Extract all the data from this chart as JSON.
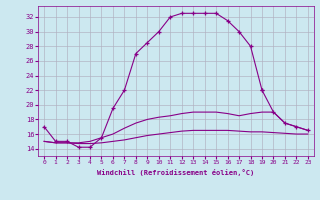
{
  "xlabel": "Windchill (Refroidissement éolien,°C)",
  "background_color": "#cce8f0",
  "grid_color": "#b0b0c0",
  "line_color": "#880088",
  "xlim": [
    -0.5,
    23.5
  ],
  "ylim": [
    13.0,
    33.5
  ],
  "xticks": [
    0,
    1,
    2,
    3,
    4,
    5,
    6,
    7,
    8,
    9,
    10,
    11,
    12,
    13,
    14,
    15,
    16,
    17,
    18,
    19,
    20,
    21,
    22,
    23
  ],
  "yticks": [
    14,
    16,
    18,
    20,
    22,
    24,
    26,
    28,
    30,
    32
  ],
  "curves": [
    {
      "x": [
        0,
        1,
        2,
        3,
        4,
        5,
        6,
        7,
        8,
        9,
        10,
        11,
        12,
        13,
        14,
        15,
        16,
        17,
        18,
        19
      ],
      "y": [
        17.0,
        15.0,
        15.0,
        14.2,
        14.2,
        15.5,
        19.5,
        22.0,
        27.0,
        28.5,
        30.0,
        32.0,
        32.5,
        32.5,
        32.5,
        32.5,
        31.5,
        30.0,
        28.0,
        22.0
      ],
      "marker": true
    },
    {
      "x": [
        19,
        20,
        21,
        22,
        23
      ],
      "y": [
        22.0,
        19.0,
        17.5,
        17.0,
        16.5
      ],
      "marker": true
    },
    {
      "x": [
        0,
        1,
        2,
        3,
        4,
        5,
        6,
        7,
        8,
        9,
        10,
        11,
        12,
        13,
        14,
        15,
        16,
        17,
        18,
        19,
        20,
        21,
        22,
        23
      ],
      "y": [
        15.0,
        14.8,
        14.8,
        14.8,
        15.0,
        15.5,
        16.0,
        16.8,
        17.5,
        18.0,
        18.3,
        18.5,
        18.8,
        19.0,
        19.0,
        19.0,
        18.8,
        18.5,
        18.8,
        19.0,
        19.0,
        17.5,
        17.0,
        16.5
      ],
      "marker": false
    },
    {
      "x": [
        0,
        1,
        2,
        3,
        4,
        5,
        6,
        7,
        8,
        9,
        10,
        11,
        12,
        13,
        14,
        15,
        16,
        17,
        18,
        19,
        20,
        21,
        22,
        23
      ],
      "y": [
        15.0,
        14.8,
        14.8,
        14.7,
        14.7,
        14.8,
        15.0,
        15.2,
        15.5,
        15.8,
        16.0,
        16.2,
        16.4,
        16.5,
        16.5,
        16.5,
        16.5,
        16.4,
        16.3,
        16.3,
        16.2,
        16.1,
        16.0,
        16.0
      ],
      "marker": false
    }
  ]
}
